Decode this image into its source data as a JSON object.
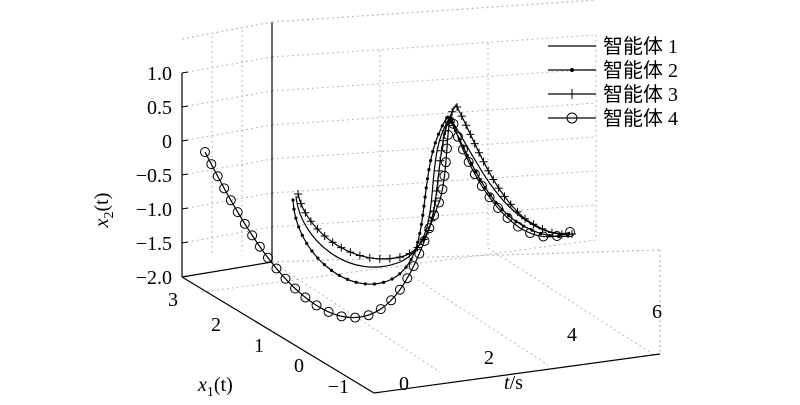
{
  "chart_data": {
    "type": "line3d",
    "title": "",
    "zlabel": "x2(t)",
    "zlabel_main": "x",
    "zlabel_sub": "2",
    "zlabel_paren": "(t)",
    "xlabel": "x1(t)",
    "xlabel_main": "x",
    "xlabel_sub": "1",
    "xlabel_paren": "(t)",
    "tlabel": "t/s",
    "tlabel_main": "t",
    "tlabel_unit": "/s",
    "z_ticks": [
      "1.0",
      "0.5",
      "0",
      "−0.5",
      "−1.0",
      "−1.5",
      "−2.0"
    ],
    "x_ticks": [
      "3",
      "2",
      "1",
      "0",
      "−1"
    ],
    "t_ticks": [
      "0",
      "2",
      "4",
      "6"
    ],
    "legend_position": "top-right",
    "grid": true,
    "series": [
      {
        "name": "智能体 1",
        "marker": "none"
      },
      {
        "name": "智能体 2",
        "marker": "dot"
      },
      {
        "name": "智能体 3",
        "marker": "plus"
      },
      {
        "name": "智能体 4",
        "marker": "circle"
      }
    ]
  }
}
